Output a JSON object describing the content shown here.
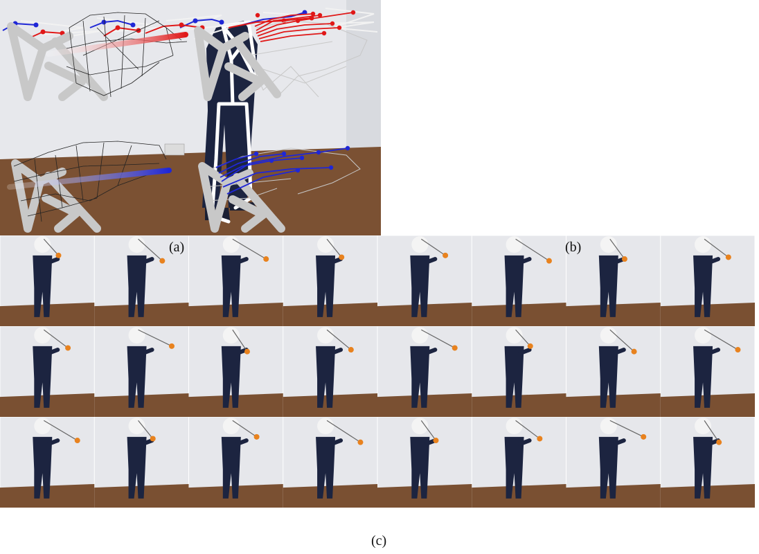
{
  "figure": {
    "captions": {
      "a": "(a)",
      "b": "(b)",
      "c": "(c)"
    },
    "panel_c": {
      "rows": 3,
      "cols": 8
    },
    "colors": {
      "skeleton_gray": "#c8c8c8",
      "graph_black": "#222222",
      "red": "#e01818",
      "blue": "#1f27d6",
      "ball_orange": "#e8821e",
      "jacket_navy": "#1c2440",
      "wall": "#e6e7eb",
      "floor": "#7a5032"
    }
  }
}
